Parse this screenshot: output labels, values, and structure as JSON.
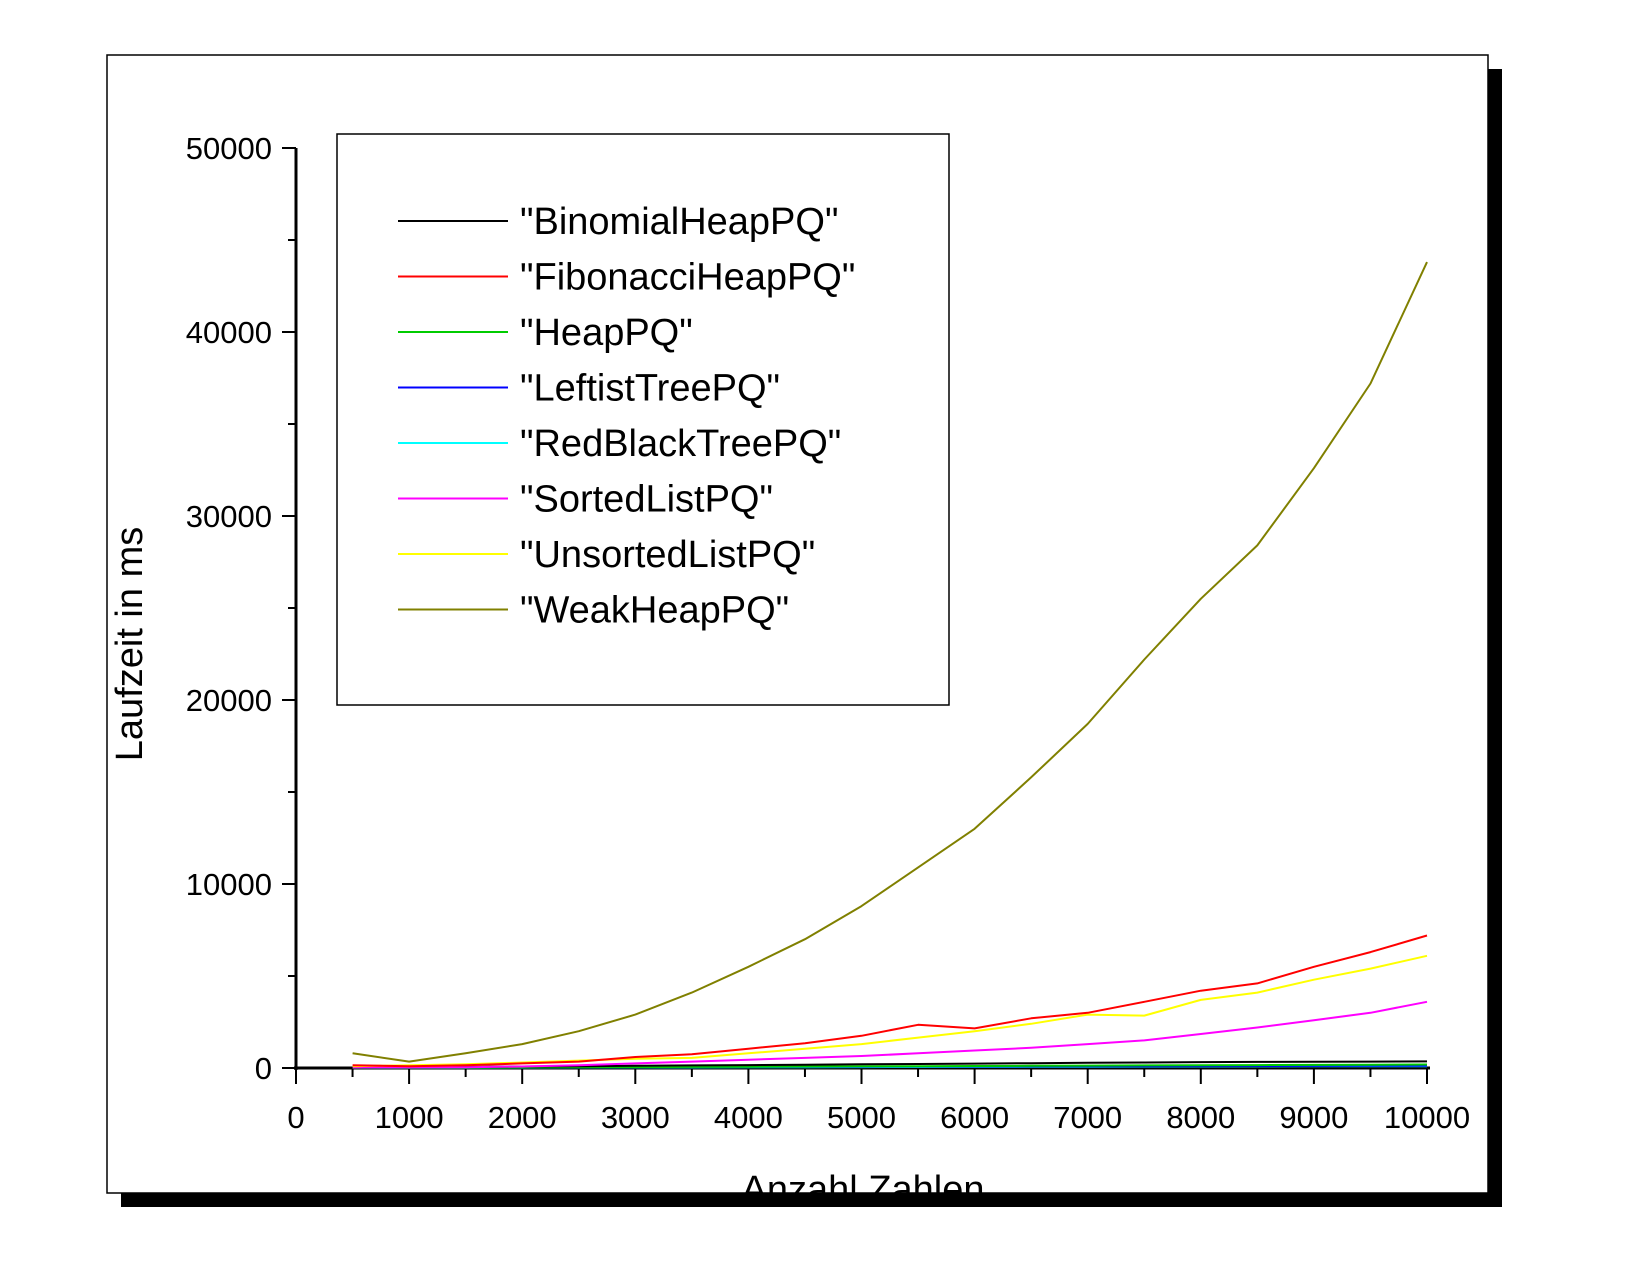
{
  "chart_data": {
    "type": "line",
    "xlabel": "Anzahl Zahlen",
    "ylabel": "Laufzeit in ms",
    "xlim": [
      0,
      10000
    ],
    "ylim": [
      0,
      50000
    ],
    "x_ticks": [
      0,
      1000,
      2000,
      3000,
      4000,
      5000,
      6000,
      7000,
      8000,
      9000,
      10000
    ],
    "y_ticks": [
      0,
      10000,
      20000,
      30000,
      40000,
      50000
    ],
    "x_tick_labels": [
      "0",
      "1000",
      "2000",
      "3000",
      "4000",
      "5000",
      "6000",
      "7000",
      "8000",
      "9000",
      "10000"
    ],
    "y_tick_labels": [
      "0",
      "10000",
      "20000",
      "30000",
      "40000",
      "50000"
    ],
    "grid": false,
    "legend_position": "top-left",
    "x": [
      500,
      1000,
      1500,
      2000,
      2500,
      3000,
      3500,
      4000,
      4500,
      5000,
      5500,
      6000,
      6500,
      7000,
      7500,
      8000,
      8500,
      9000,
      9500,
      10000
    ],
    "series": [
      {
        "name": "\"BinomialHeapPQ\"",
        "color": "#000000",
        "values": [
          20,
          40,
          60,
          80,
          100,
          120,
          140,
          160,
          180,
          200,
          220,
          240,
          260,
          280,
          300,
          320,
          330,
          340,
          350,
          360
        ]
      },
      {
        "name": "\"FibonacciHeapPQ\"",
        "color": "#ff0000",
        "values": [
          150,
          100,
          150,
          250,
          350,
          600,
          750,
          1050,
          1350,
          1750,
          2350,
          2150,
          2700,
          3000,
          3600,
          4200,
          4600,
          5500,
          6300,
          7200
        ]
      },
      {
        "name": "\"HeapPQ\"",
        "color": "#00cc00",
        "values": [
          10,
          15,
          20,
          30,
          40,
          50,
          60,
          70,
          80,
          90,
          100,
          110,
          120,
          130,
          140,
          150,
          160,
          170,
          180,
          190
        ]
      },
      {
        "name": "\"LeftistTreePQ\"",
        "color": "#0000ff",
        "values": [
          10,
          15,
          20,
          30,
          40,
          50,
          60,
          65,
          70,
          75,
          80,
          85,
          90,
          95,
          100,
          105,
          110,
          115,
          120,
          125
        ]
      },
      {
        "name": "\"RedBlackTreePQ\"",
        "color": "#00ffff",
        "values": [
          5,
          10,
          15,
          20,
          25,
          30,
          35,
          40,
          45,
          50,
          55,
          60,
          65,
          70,
          75,
          80,
          85,
          90,
          95,
          100
        ]
      },
      {
        "name": "\"SortedListPQ\"",
        "color": "#ff00ff",
        "values": [
          30,
          30,
          40,
          80,
          150,
          250,
          350,
          450,
          550,
          650,
          800,
          950,
          1100,
          1300,
          1500,
          1850,
          2200,
          2600,
          3000,
          3600
        ]
      },
      {
        "name": "\"UnsortedListPQ\"",
        "color": "#ffff00",
        "values": [
          100,
          150,
          200,
          300,
          400,
          500,
          550,
          800,
          1050,
          1300,
          1650,
          2000,
          2400,
          2900,
          2850,
          3700,
          4100,
          4800,
          5400,
          6100
        ]
      },
      {
        "name": "\"WeakHeapPQ\"",
        "color": "#808000",
        "values": [
          800,
          350,
          800,
          1300,
          2000,
          2900,
          4100,
          5500,
          7000,
          8800,
          10900,
          13000,
          15800,
          18700,
          22200,
          25500,
          28400,
          32600,
          37200,
          43800
        ]
      }
    ]
  }
}
